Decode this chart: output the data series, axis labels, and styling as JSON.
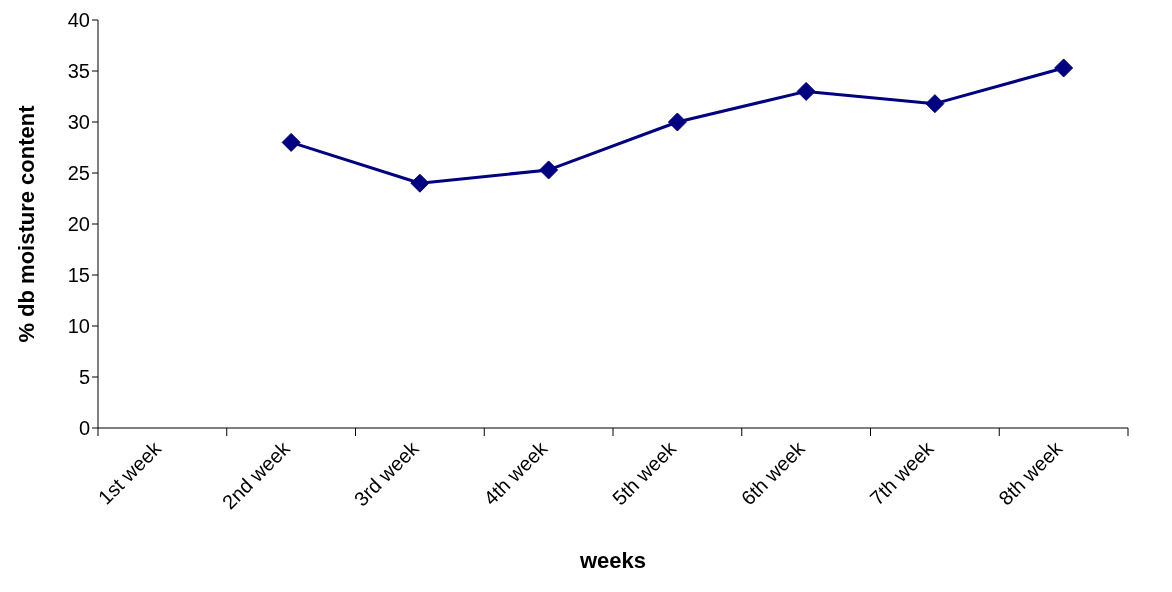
{
  "chart_data": {
    "type": "line",
    "xlabel": "weeks",
    "ylabel": "% db moisture content",
    "categories": [
      "1st week",
      "2nd week",
      "3rd week",
      "4th week",
      "5th week",
      "6th week",
      "7th week",
      "8th week"
    ],
    "series": [
      {
        "color": "#000080",
        "values": [
          null,
          28,
          24,
          25.3,
          30,
          33,
          31.8,
          35.3
        ]
      }
    ],
    "ylim": [
      0,
      40
    ],
    "yticks": [
      0,
      5,
      10,
      15,
      20,
      25,
      30,
      35,
      40
    ],
    "grid": false,
    "legend": false,
    "marker": "diamond",
    "line_style": "solid"
  }
}
